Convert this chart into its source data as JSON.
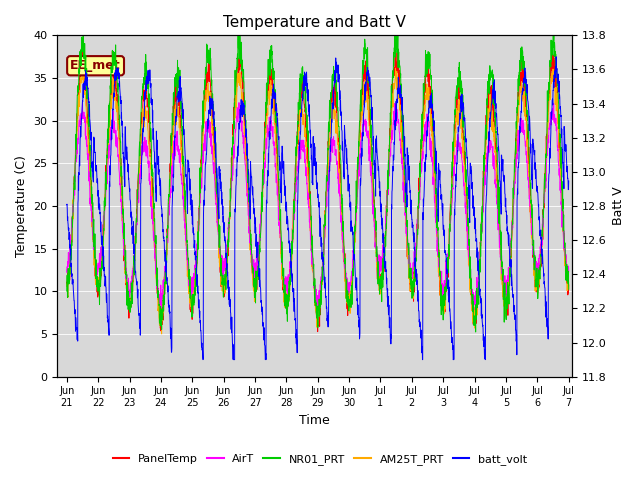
{
  "title": "Temperature and Batt V",
  "xlabel": "Time",
  "ylabel_left": "Temperature (C)",
  "ylabel_right": "Batt V",
  "annotation": "EE_met",
  "ylim_left": [
    0,
    40
  ],
  "ylim_right": [
    11.8,
    13.8
  ],
  "yticks_left": [
    0,
    5,
    10,
    15,
    20,
    25,
    30,
    35,
    40
  ],
  "yticks_right": [
    11.8,
    12.0,
    12.2,
    12.4,
    12.6,
    12.8,
    13.0,
    13.2,
    13.4,
    13.6,
    13.8
  ],
  "colors": {
    "PanelTemp": "#ff0000",
    "AirT": "#ff00ff",
    "NR01_PRT": "#00cc00",
    "AM25T_PRT": "#ffaa00",
    "batt_volt": "#0000ff"
  },
  "legend_labels": [
    "PanelTemp",
    "AirT",
    "NR01_PRT",
    "AM25T_PRT",
    "batt_volt"
  ],
  "bg_color": "#d8d8d8",
  "n_days": 16,
  "points_per_day": 144,
  "annotation_color": "#880000",
  "annotation_bg": "#ffff99",
  "xtick_labels": [
    "Jun 22",
    "Jun 23",
    "Jun 24",
    "Jun 25",
    "Jun 26",
    "Jun 27",
    "Jun 28",
    "Jun 29",
    "Jun 30",
    "Jul 1",
    "Jul 2",
    "Jul 3",
    "Jul 4",
    "Jul 5",
    "Jul 6",
    "Jul 7"
  ]
}
